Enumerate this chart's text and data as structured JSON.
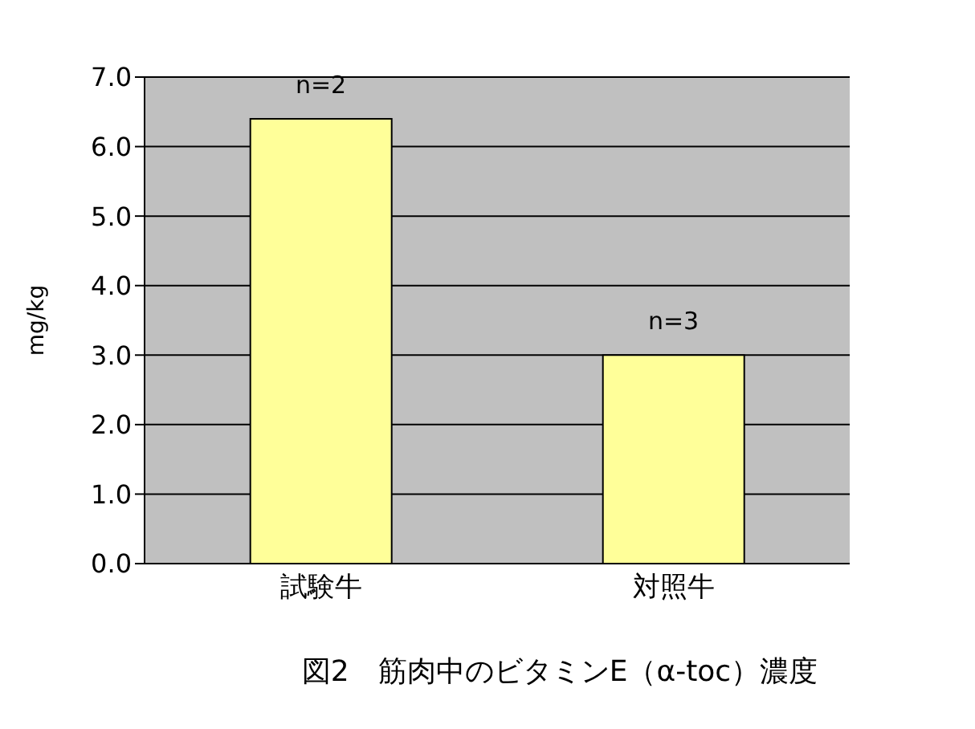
{
  "chart_data": {
    "type": "bar",
    "title": "図2　筋肉中のビタミンE（α-toc）濃度",
    "ylabel": "mg/kg",
    "categories": [
      "試験牛",
      "対照牛"
    ],
    "values": [
      6.4,
      3.0
    ],
    "color": "#ffff99",
    "ylim": [
      0,
      7
    ],
    "yticks": [
      {
        "value": 0,
        "label": "0.0"
      },
      {
        "value": 1,
        "label": "1.0"
      },
      {
        "value": 2,
        "label": "2.0"
      },
      {
        "value": 3,
        "label": "3.0"
      },
      {
        "value": 4,
        "label": "4.0"
      },
      {
        "value": 5,
        "label": "5.0"
      },
      {
        "value": 6,
        "label": "6.0"
      },
      {
        "value": 7,
        "label": "7.0"
      }
    ],
    "grid": "y",
    "annotations": [
      {
        "text": "n=2",
        "x": "試験牛",
        "y": 6.4
      },
      {
        "text": "n=3",
        "x": "対照牛",
        "y": 3.0
      }
    ]
  }
}
